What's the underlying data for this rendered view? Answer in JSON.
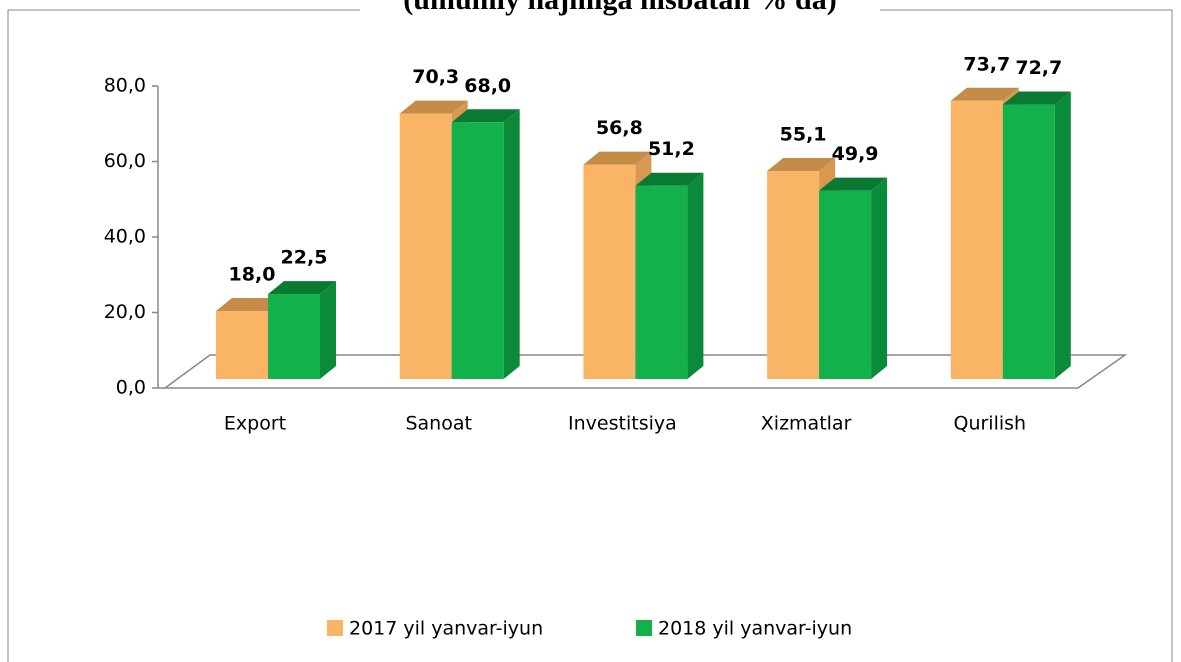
{
  "chart_data": {
    "type": "bar3d",
    "title": "(umumiy hajmiga nisbatan % da)",
    "categories": [
      "Export",
      "Sanoat",
      "Investitsiya",
      "Xizmatlar",
      "Qurilish"
    ],
    "series": [
      {
        "name": "2017 yil yanvar-iyun",
        "color": "#f9b466",
        "values": [
          18.0,
          70.3,
          56.8,
          55.1,
          73.7
        ],
        "value_labels": [
          "18,0",
          "70,3",
          "56,8",
          "55,1",
          "73,7"
        ]
      },
      {
        "name": "2018 yil yanvar-iyun",
        "color": "#12b14b",
        "values": [
          22.5,
          68.0,
          51.2,
          49.9,
          72.7
        ],
        "value_labels": [
          "22,5",
          "68,0",
          "51,2",
          "49,9",
          "72,7"
        ]
      }
    ],
    "ylim": [
      0,
      80
    ],
    "yticks": [
      {
        "value": 0,
        "label": "0,0"
      },
      {
        "value": 20,
        "label": "20,0"
      },
      {
        "value": 40,
        "label": "40,0"
      },
      {
        "value": 60,
        "label": "60,0"
      },
      {
        "value": 80,
        "label": "80,0"
      }
    ],
    "legend": "bottom"
  }
}
